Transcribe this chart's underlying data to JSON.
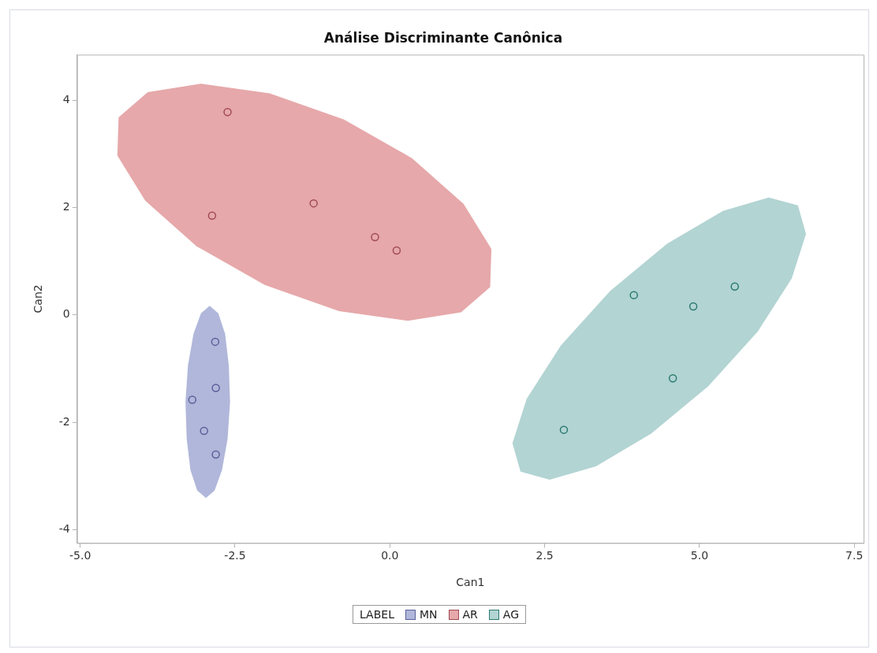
{
  "chart_data": {
    "type": "scatter",
    "title": "Análise Discriminante Canônica",
    "xlabel": "Can1",
    "ylabel": "Can2",
    "legend_title": "LABEL",
    "legend": "bottom",
    "marker": "circle",
    "grid": false,
    "xlim": [
      -5.05,
      7.65
    ],
    "ylim": [
      -4.25,
      4.85
    ],
    "xticks": [
      {
        "value": -5,
        "label": "-5.0"
      },
      {
        "value": -2.5,
        "label": "-2.5"
      },
      {
        "value": 0,
        "label": "0.0"
      },
      {
        "value": 2.5,
        "label": "2.5"
      },
      {
        "value": 5,
        "label": "5.0"
      },
      {
        "value": 7.5,
        "label": "7.5"
      }
    ],
    "yticks": [
      -4,
      -2,
      0,
      2,
      4
    ],
    "series": [
      {
        "type": "area",
        "marker": "none",
        "color": "#b0b7da",
        "x": [
          -2.91,
          -2.77,
          -2.66,
          -2.6,
          -2.58,
          -2.62,
          -2.71,
          -2.83,
          -2.97,
          -3.11,
          -3.22,
          -3.28,
          -3.3,
          -3.26,
          -3.17,
          -3.05
        ],
        "values": [
          0.17,
          0.03,
          -0.35,
          -0.94,
          -1.62,
          -2.31,
          -2.89,
          -3.27,
          -3.41,
          -3.27,
          -2.89,
          -2.31,
          -1.62,
          -0.94,
          -0.35,
          0.03
        ]
      },
      {
        "type": "area",
        "marker": "none",
        "color": "#e6a8aa",
        "x": [
          1.62,
          1.64,
          1.19,
          0.36,
          -0.74,
          -1.94,
          -3.05,
          -3.91,
          -4.38,
          -4.4,
          -3.95,
          -3.12,
          -2.02,
          -0.82,
          0.29,
          1.15
        ],
        "values": [
          0.52,
          1.23,
          2.07,
          2.92,
          3.64,
          4.13,
          4.31,
          4.15,
          3.68,
          2.97,
          2.13,
          1.28,
          0.56,
          0.07,
          -0.11,
          0.05
        ]
      },
      {
        "type": "area",
        "marker": "none",
        "color": "#b2d4d3",
        "x": [
          6.59,
          6.72,
          6.49,
          5.94,
          5.14,
          4.22,
          3.33,
          2.58,
          2.11,
          1.98,
          2.21,
          2.76,
          3.56,
          4.48,
          5.38,
          6.12
        ],
        "values": [
          2.04,
          1.51,
          0.68,
          -0.31,
          -1.33,
          -2.21,
          -2.82,
          -3.07,
          -2.92,
          -2.39,
          -1.56,
          -0.57,
          0.45,
          1.33,
          1.94,
          2.19
        ]
      },
      {
        "name": "MN",
        "color": "#5b6099",
        "x": [
          -2.82,
          -2.81,
          -3.19,
          -3.0,
          -2.81
        ],
        "values": [
          -0.5,
          -1.36,
          -1.58,
          -2.16,
          -2.6
        ]
      },
      {
        "name": "AR",
        "color": "#a04a55",
        "x": [
          -2.62,
          -2.87,
          -1.23,
          -0.24,
          0.11
        ],
        "values": [
          3.78,
          1.85,
          2.08,
          1.45,
          1.2
        ]
      },
      {
        "name": "AG",
        "color": "#2a7a70",
        "x": [
          3.94,
          4.9,
          5.57,
          4.57,
          2.81
        ],
        "values": [
          0.37,
          0.16,
          0.53,
          -1.18,
          -2.14
        ]
      }
    ]
  }
}
